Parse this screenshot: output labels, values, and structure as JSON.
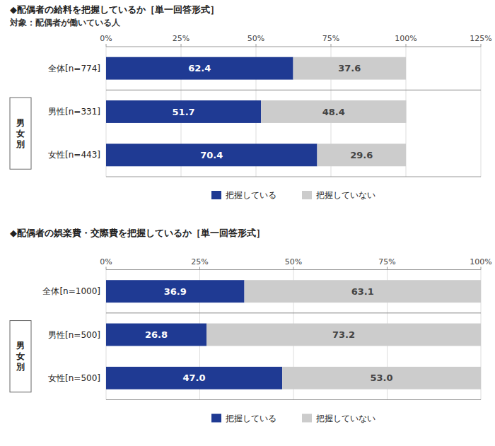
{
  "chart_data": [
    {
      "type": "bar",
      "orientation": "horizontal",
      "stacked": true,
      "data_labels": true,
      "grid": true,
      "legend": "bottom",
      "title": "◆配偶者の給料を把握しているか［単一回答形式］",
      "subtitle": "対象：配偶者が働いている人",
      "annotations": [
        "男\n女\n別"
      ],
      "categories": [
        "全体[n=774]",
        "男性[n=331]",
        "女性[n=443]"
      ],
      "series": [
        {
          "name": "把握している",
          "color": "#1f3a93",
          "values": [
            62.4,
            51.7,
            70.4
          ]
        },
        {
          "name": "把握していない",
          "color": "#cccccc",
          "values": [
            37.6,
            48.4,
            29.6
          ]
        }
      ],
      "xlim": [
        0,
        125
      ],
      "xticks": [
        {
          "value": 0,
          "label": "0%"
        },
        {
          "value": 25,
          "label": "25%"
        },
        {
          "value": 50,
          "label": "50%"
        },
        {
          "value": 75,
          "label": "75%"
        },
        {
          "value": 100,
          "label": "100%"
        },
        {
          "value": 125,
          "label": "125%"
        }
      ]
    },
    {
      "type": "bar",
      "orientation": "horizontal",
      "stacked": true,
      "data_labels": true,
      "grid": true,
      "legend": "bottom",
      "title": "◆配偶者の娯楽費・交際費を把握しているか［単一回答形式］",
      "annotations": [
        "男\n女\n別"
      ],
      "categories": [
        "全体[n=1000]",
        "男性[n=500]",
        "女性[n=500]"
      ],
      "series": [
        {
          "name": "把握している",
          "color": "#1f3a93",
          "values": [
            36.9,
            26.8,
            47.0
          ],
          "value_labels": [
            "36.9",
            "26.8",
            "47.0"
          ]
        },
        {
          "name": "把握していない",
          "color": "#cccccc",
          "values": [
            63.1,
            73.2,
            53.0
          ],
          "value_labels": [
            "63.1",
            "73.2",
            "53.0"
          ]
        }
      ],
      "xlim": [
        0,
        100
      ],
      "xticks": [
        {
          "value": 0,
          "label": "0%"
        },
        {
          "value": 25,
          "label": "25%"
        },
        {
          "value": 50,
          "label": "50%"
        },
        {
          "value": 75,
          "label": "75%"
        },
        {
          "value": 100,
          "label": "100%"
        }
      ]
    }
  ]
}
